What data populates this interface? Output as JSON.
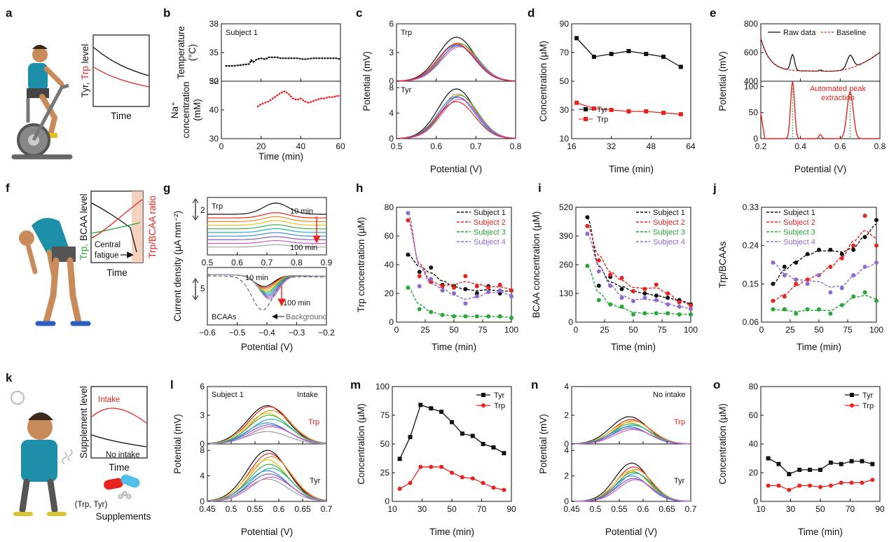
{
  "colors": {
    "black": "#111111",
    "red": "#e8231e",
    "green": "#27a63a",
    "purple": "#8c6bd1",
    "multi": [
      "#111111",
      "#e8231e",
      "#f08a1c",
      "#e7c41a",
      "#3fae49",
      "#23b2b0",
      "#3a8fd8",
      "#7b5bc9",
      "#d05ac8",
      "#9aa0a6",
      "#c47a2a",
      "#59c7e0"
    ]
  },
  "panels": {
    "a": {
      "label": "a",
      "ylabel_a": "Tyr, ",
      "ylabel_b": "Trp",
      "ylabel_c": " level",
      "xlabel": "Time"
    },
    "b": {
      "label": "b",
      "subject": "Subject 1",
      "ylabel_top1": "Temperature",
      "ylabel_top2": "(°C)",
      "ylabel_bot1": "Na⁺",
      "ylabel_bot2": "concentration",
      "ylabel_bot3": "(mM)",
      "xlabel": "Time (min)",
      "xticks": [
        "0",
        "20",
        "40",
        "60"
      ],
      "yticks_top": [
        "32",
        "35",
        "38"
      ],
      "yticks_bot": [
        "30",
        "40",
        "50"
      ]
    },
    "c": {
      "label": "c",
      "top_label": "Trp",
      "bot_label": "Tyr",
      "xlabel": "Potential (V)",
      "ylabel": "Potential (mV)",
      "xticks": [
        "0.5",
        "0.6",
        "0.7",
        "0.8"
      ],
      "yticks_top": [
        "0",
        "3",
        "6"
      ],
      "yticks_bot": [
        "0",
        "4",
        "8"
      ]
    },
    "d": {
      "label": "d",
      "xlabel": "Time (min)",
      "ylabel": "Concentration (µM)",
      "xticks": [
        "16",
        "32",
        "48",
        "64"
      ],
      "yticks": [
        "10",
        "30",
        "50",
        "70",
        "90"
      ],
      "legend": [
        "Tyr",
        "Trp"
      ]
    },
    "e": {
      "label": "e",
      "xlabel": "Potential (V)",
      "ylabel": "Potential (mV)",
      "xticks": [
        "0.2",
        "0.4",
        "0.6",
        "0.8"
      ],
      "yticks_top": [
        "400",
        "600",
        "800"
      ],
      "yticks_bot": [
        "0",
        "50",
        "100"
      ],
      "legend": [
        "Raw data",
        "Baseline"
      ],
      "annotation1": "Automated peak",
      "annotation2": "extraction"
    },
    "f": {
      "label": "f",
      "ylabel_green": "Trp,",
      "ylabel_black": " BCAA level",
      "ylabel_right": "Trp/BCAA ratio",
      "xlabel": "Time",
      "fatigue1": "Central",
      "fatigue2": "fatigue"
    },
    "g": {
      "label": "g",
      "top_label": "Trp",
      "bot_label": "BCAAs",
      "scale_top": "2",
      "scale_bot": "5",
      "t10": "10 min",
      "t100": "100 min",
      "background": "Background",
      "xlabel": "Potential (V)",
      "ylabel": "Current density (µA mm⁻²)",
      "xticks": [
        "−0.6",
        "−0.5",
        "−0.4",
        "−0.3",
        "−0.2"
      ],
      "xticks_top": [
        "0.5",
        "0.6",
        "0.7",
        "0.8",
        "0.9"
      ]
    },
    "h": {
      "label": "h",
      "xlabel": "Time (min)",
      "ylabel": "Trp concentration (µM)",
      "xticks": [
        "0",
        "25",
        "50",
        "75",
        "100"
      ],
      "yticks": [
        "0",
        "20",
        "40",
        "60",
        "80"
      ],
      "legend": [
        "Subject 1",
        "Subject 2",
        "Subject 3",
        "Subject 4"
      ]
    },
    "i": {
      "label": "i",
      "xlabel": "Time (min)",
      "ylabel": "BCAA concentration (µM)",
      "xticks": [
        "0",
        "25",
        "50",
        "75",
        "100"
      ],
      "yticks": [
        "0",
        "130",
        "260",
        "390",
        "520"
      ],
      "legend": [
        "Subject 1",
        "Subject 2",
        "Subject 3",
        "Subject 4"
      ]
    },
    "j": {
      "label": "j",
      "xlabel": "Time (min)",
      "ylabel": "Trp/BCAAs",
      "xticks": [
        "0",
        "25",
        "50",
        "75",
        "100"
      ],
      "yticks": [
        "0.06",
        "0.15",
        "0.24",
        "0.33"
      ],
      "legend": [
        "Subject 1",
        "Subject 2",
        "Subject 3",
        "Subject 4"
      ]
    },
    "k": {
      "label": "k",
      "ylabel": "Supplement level",
      "intake": "Intake",
      "no_intake": "No intake",
      "xlabel": "Time",
      "supp1": "(Trp, Tyr)",
      "supp2": "Supplements"
    },
    "l": {
      "label": "l",
      "subject": "Subject 1",
      "intake": "Intake",
      "top_label": "Trp",
      "bot_label": "Tyr",
      "xlabel": "Potential (V)",
      "ylabel": "Potential (mV)",
      "xticks": [
        "0.45",
        "0.5",
        "0.55",
        "0.6",
        "0.65",
        "0.7"
      ],
      "yticks_top": [
        "0",
        "3",
        "6"
      ],
      "yticks_bot": [
        "0",
        "4",
        "8"
      ]
    },
    "m": {
      "label": "m",
      "xlabel": "Time (min)",
      "ylabel": "Concentration (µM)",
      "xticks": [
        "10",
        "30",
        "50",
        "70",
        "90"
      ],
      "yticks": [
        "0",
        "25",
        "50",
        "75",
        "100"
      ],
      "legend": [
        "Tyr",
        "Trp"
      ]
    },
    "n": {
      "label": "n",
      "no_intake": "No intake",
      "top_label": "Trp",
      "bot_label": "Tyr",
      "xlabel": "Potential (V)",
      "ylabel": "Potential (mV)",
      "xticks": [
        "0.45",
        "0.5",
        "0.55",
        "0.6",
        "0.65",
        "0.7"
      ],
      "yticks_top": [
        "0",
        "2",
        "4"
      ],
      "yticks_bot": [
        "0",
        "2",
        "4"
      ]
    },
    "o": {
      "label": "o",
      "xlabel": "Time (min)",
      "ylabel": "Concentration (µM)",
      "xticks": [
        "10",
        "30",
        "50",
        "70",
        "90"
      ],
      "yticks": [
        "0",
        "20",
        "40",
        "60",
        "80"
      ],
      "legend": [
        "Tyr",
        "Trp"
      ]
    }
  },
  "chart_data": [
    {
      "panel": "b",
      "type": "line",
      "xlim": [
        0,
        60
      ],
      "ylim_top": [
        32,
        38
      ],
      "ylim_bot": [
        30,
        50
      ],
      "series": [
        {
          "x": [
            2,
            6,
            10,
            14,
            15,
            16,
            18,
            20,
            22,
            24,
            26,
            28,
            30,
            34,
            38,
            42,
            46,
            50,
            54,
            58,
            60
          ],
          "y": [
            33.6,
            33.6,
            33.7,
            33.8,
            34.2,
            34.0,
            34.3,
            34.4,
            34.3,
            34.5,
            34.5,
            34.5,
            34.4,
            34.4,
            34.4,
            34.3,
            34.4,
            34.4,
            34.4,
            34.4,
            34.3
          ]
        },
        {
          "x": [
            18,
            20,
            22,
            24,
            26,
            28,
            30,
            32,
            34,
            36,
            38,
            40,
            42,
            44,
            46,
            48,
            50,
            52,
            54,
            56,
            58,
            60
          ],
          "y": [
            41,
            42,
            42.5,
            43,
            44,
            45,
            46,
            46.5,
            45.5,
            44,
            43.5,
            44,
            43,
            42.5,
            43,
            43.5,
            44,
            44,
            44.5,
            44.5,
            44.8,
            45
          ]
        }
      ]
    },
    {
      "panel": "c",
      "type": "line",
      "xlim": [
        0.5,
        0.8
      ],
      "top": {
        "ylim": [
          0,
          6
        ],
        "peaks": [
          4.6,
          4.0,
          3.9,
          3.8,
          3.7,
          3.6,
          3.9
        ],
        "center": 0.655
      },
      "bottom": {
        "ylim": [
          0,
          9
        ],
        "peaks": [
          7.8,
          7.0,
          6.8,
          6.6,
          6.5,
          6.2,
          5.8
        ],
        "center": 0.655
      }
    },
    {
      "panel": "d",
      "type": "line",
      "xlim": [
        16,
        64
      ],
      "ylim": [
        10,
        90
      ],
      "series": [
        {
          "name": "Tyr",
          "x": [
            18,
            25,
            32,
            39,
            46,
            53,
            60
          ],
          "y": [
            80,
            67,
            69,
            71,
            69,
            67,
            60
          ]
        },
        {
          "name": "Trp",
          "x": [
            18,
            25,
            32,
            39,
            46,
            53,
            60
          ],
          "y": [
            35,
            31,
            30,
            29,
            29,
            28,
            27
          ]
        }
      ]
    },
    {
      "panel": "e",
      "type": "line",
      "xlim": [
        0.2,
        0.8
      ],
      "ylim_top": [
        400,
        800
      ],
      "ylim_bot": [
        0,
        110
      ],
      "peaks": [
        0.36,
        0.65
      ]
    },
    {
      "panel": "g",
      "type": "line",
      "top": {
        "xlim": [
          0.5,
          0.9
        ],
        "n": 10,
        "peak": 0.73
      },
      "bottom": {
        "xlim": [
          -0.6,
          -0.2
        ],
        "n": 10,
        "valley": -0.41
      }
    },
    {
      "panel": "h",
      "type": "scatter",
      "xlim": [
        0,
        100
      ],
      "ylim": [
        0,
        80
      ],
      "series": [
        {
          "name": "Subject 1",
          "x": [
            10,
            20,
            30,
            40,
            50,
            60,
            70,
            80,
            90,
            100
          ],
          "y": [
            47,
            35,
            38,
            26,
            25,
            23,
            20,
            25,
            20,
            22
          ]
        },
        {
          "name": "Subject 2",
          "x": [
            10,
            20,
            30,
            40,
            50,
            60,
            70,
            80,
            90,
            100
          ],
          "y": [
            71,
            32,
            28,
            25,
            24,
            32,
            25,
            24,
            26,
            22
          ]
        },
        {
          "name": "Subject 3",
          "x": [
            10,
            20,
            30,
            40,
            50,
            60,
            70,
            80,
            90,
            100
          ],
          "y": [
            24,
            9,
            7,
            5,
            4,
            4,
            4,
            4,
            4,
            3
          ]
        },
        {
          "name": "Subject 4",
          "x": [
            10,
            20,
            30,
            40,
            50,
            60,
            70,
            80,
            90,
            100
          ],
          "y": [
            76,
            25,
            30,
            22,
            20,
            13,
            18,
            21,
            22,
            18
          ]
        }
      ]
    },
    {
      "panel": "i",
      "type": "scatter",
      "xlim": [
        0,
        100
      ],
      "ylim": [
        0,
        520
      ],
      "series": [
        {
          "name": "Subject 1",
          "x": [
            10,
            20,
            30,
            40,
            50,
            60,
            70,
            80,
            90,
            100
          ],
          "y": [
            475,
            165,
            205,
            150,
            140,
            130,
            120,
            110,
            100,
            80
          ]
        },
        {
          "name": "Subject 2",
          "x": [
            10,
            20,
            30,
            40,
            50,
            60,
            70,
            80,
            90,
            100
          ],
          "y": [
            435,
            280,
            215,
            200,
            140,
            150,
            170,
            130,
            90,
            75
          ]
        },
        {
          "name": "Subject 3",
          "x": [
            10,
            20,
            30,
            40,
            50,
            60,
            70,
            80,
            90,
            100
          ],
          "y": [
            255,
            100,
            80,
            70,
            35,
            40,
            40,
            40,
            35,
            35
          ]
        },
        {
          "name": "Subject 4",
          "x": [
            10,
            20,
            30,
            40,
            50,
            60,
            70,
            80,
            90,
            100
          ],
          "y": [
            400,
            230,
            165,
            110,
            95,
            110,
            100,
            80,
            70,
            60
          ]
        }
      ]
    },
    {
      "panel": "j",
      "type": "scatter",
      "xlim": [
        0,
        100
      ],
      "ylim": [
        0.06,
        0.33
      ],
      "series": [
        {
          "name": "Subject 1",
          "x": [
            10,
            20,
            30,
            40,
            50,
            60,
            70,
            80,
            90,
            100
          ],
          "y": [
            0.15,
            0.19,
            0.2,
            0.22,
            0.23,
            0.23,
            0.22,
            0.23,
            0.26,
            0.3
          ]
        },
        {
          "name": "Subject 2",
          "x": [
            10,
            20,
            30,
            40,
            50,
            60,
            70,
            80,
            90,
            100
          ],
          "y": [
            0.11,
            0.12,
            0.15,
            0.16,
            0.17,
            0.19,
            0.21,
            0.24,
            0.31,
            0.24
          ]
        },
        {
          "name": "Subject 3",
          "x": [
            10,
            20,
            30,
            40,
            50,
            60,
            70,
            80,
            90,
            100
          ],
          "y": [
            0.09,
            0.09,
            0.08,
            0.09,
            0.09,
            0.08,
            0.1,
            0.12,
            0.13,
            0.11
          ]
        },
        {
          "name": "Subject 4",
          "x": [
            10,
            20,
            30,
            40,
            50,
            60,
            70,
            80,
            90,
            100
          ],
          "y": [
            0.2,
            0.17,
            0.16,
            0.15,
            0.17,
            0.13,
            0.14,
            0.17,
            0.19,
            0.2
          ]
        }
      ]
    },
    {
      "panel": "l",
      "type": "line",
      "xlim": [
        0.45,
        0.7
      ],
      "top": {
        "ylim": [
          0,
          6
        ],
        "peaks": [
          4.0,
          3.9,
          3.5,
          3.2,
          3.0,
          2.6,
          2.2,
          2.0,
          1.8,
          1.3
        ],
        "center": 0.58
      },
      "bottom": {
        "ylim": [
          0,
          9
        ],
        "peaks": [
          8.0,
          7.5,
          7.0,
          6.5,
          5.8,
          5.2,
          4.8,
          4.3,
          3.8,
          3.5
        ],
        "center": 0.58
      }
    },
    {
      "panel": "m",
      "type": "line",
      "xlim": [
        10,
        90
      ],
      "ylim": [
        0,
        100
      ],
      "series": [
        {
          "name": "Tyr",
          "x": [
            15,
            22,
            29,
            36,
            43,
            50,
            57,
            64,
            71,
            78,
            85
          ],
          "y": [
            37,
            56,
            84,
            81,
            78,
            69,
            59,
            57,
            50,
            47,
            42
          ]
        },
        {
          "name": "Trp",
          "x": [
            15,
            22,
            29,
            36,
            43,
            50,
            57,
            64,
            71,
            78,
            85
          ],
          "y": [
            11,
            16,
            30,
            30,
            30,
            25,
            21,
            20,
            16,
            12,
            10
          ]
        }
      ]
    },
    {
      "panel": "n",
      "type": "line",
      "xlim": [
        0.45,
        0.7
      ],
      "top": {
        "ylim": [
          0,
          4
        ],
        "peaks": [
          1.9,
          1.7,
          1.6,
          1.5,
          1.4,
          1.3,
          1.2,
          1.1,
          1.0
        ],
        "center": 0.575
      },
      "bottom": {
        "ylim": [
          0,
          4.5
        ],
        "peaks": [
          3.0,
          2.7,
          2.5,
          2.4,
          2.3,
          2.2,
          2.0,
          1.8,
          1.7
        ],
        "center": 0.58
      }
    },
    {
      "panel": "o",
      "type": "line",
      "xlim": [
        10,
        90
      ],
      "ylim": [
        0,
        80
      ],
      "series": [
        {
          "name": "Tyr",
          "x": [
            15,
            22,
            29,
            36,
            43,
            50,
            57,
            64,
            71,
            78,
            85
          ],
          "y": [
            30,
            26,
            19,
            22,
            22,
            22,
            27,
            26,
            28,
            28,
            26
          ]
        },
        {
          "name": "Trp",
          "x": [
            15,
            22,
            29,
            36,
            43,
            50,
            57,
            64,
            71,
            78,
            85
          ],
          "y": [
            11,
            11,
            8,
            11,
            11,
            10,
            11,
            13,
            13,
            13,
            15
          ]
        }
      ]
    }
  ]
}
